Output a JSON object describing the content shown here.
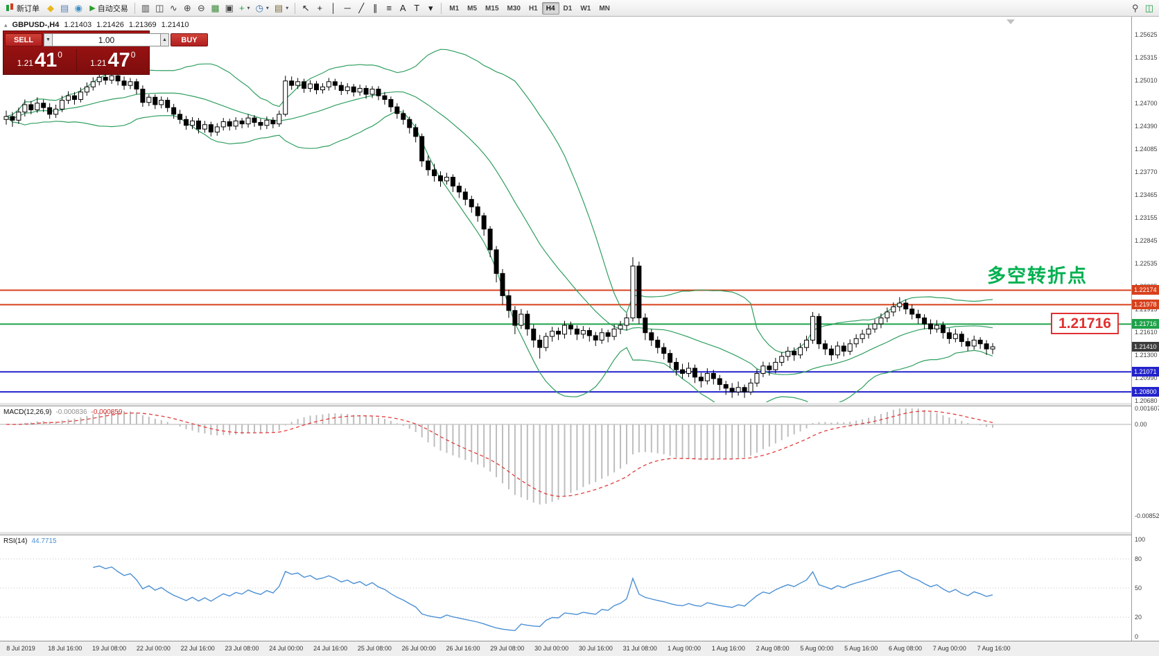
{
  "toolbar": {
    "new_order_label": "新订单",
    "auto_trading_label": "自动交易",
    "timeframes": [
      "M1",
      "M5",
      "M15",
      "M30",
      "H1",
      "H4",
      "D1",
      "W1",
      "MN"
    ],
    "active_timeframe": "H4",
    "icon_buttons_left": [
      {
        "name": "mql5-icon",
        "glyph": "◆",
        "color": "#e8b61d"
      },
      {
        "name": "metaeditor-icon",
        "glyph": "▤",
        "color": "#5b7fb4"
      },
      {
        "name": "metaquotes-icon",
        "glyph": "◉",
        "color": "#3f8fc4"
      }
    ],
    "chart_tool_icons": [
      {
        "name": "bar-chart-icon",
        "glyph": "▥",
        "color": "#444"
      },
      {
        "name": "candlestick-chart-icon",
        "glyph": "◫",
        "color": "#444"
      },
      {
        "name": "line-chart-icon",
        "glyph": "∿",
        "color": "#444"
      },
      {
        "name": "zoom-in-icon",
        "glyph": "⊕",
        "color": "#444"
      },
      {
        "name": "zoom-out-icon",
        "glyph": "⊖",
        "color": "#444"
      },
      {
        "name": "tile-windows-icon",
        "glyph": "▦",
        "color": "#3a8a3a"
      },
      {
        "name": "arrange-windows-icon",
        "glyph": "▣",
        "color": "#444"
      },
      {
        "name": "indicators-icon",
        "glyph": "+",
        "color": "#1e9e40",
        "dropdown": true
      },
      {
        "name": "periods-icon",
        "glyph": "◷",
        "color": "#3a6ea8",
        "dropdown": true
      },
      {
        "name": "templates-icon",
        "glyph": "▤",
        "color": "#7a6a3a",
        "dropdown": true
      }
    ],
    "draw_tool_icons": [
      {
        "name": "cursor-icon",
        "glyph": "↖",
        "color": "#222"
      },
      {
        "name": "crosshair-icon",
        "glyph": "+",
        "color": "#222"
      },
      {
        "name": "vertical-line-icon",
        "glyph": "│",
        "color": "#222"
      },
      {
        "name": "horizontal-line-icon",
        "glyph": "─",
        "color": "#222"
      },
      {
        "name": "trendline-icon",
        "glyph": "╱",
        "color": "#222"
      },
      {
        "name": "channel-icon",
        "glyph": "∥",
        "color": "#222"
      },
      {
        "name": "fibonacci-icon",
        "glyph": "≡",
        "color": "#222"
      },
      {
        "name": "text-icon",
        "glyph": "A",
        "color": "#222"
      },
      {
        "name": "label-icon",
        "glyph": "T",
        "color": "#222"
      },
      {
        "name": "shapes-dropdown-icon",
        "glyph": "▾",
        "color": "#222"
      }
    ],
    "right_icons": [
      {
        "name": "search-icon",
        "glyph": "⚲",
        "color": "#444"
      },
      {
        "name": "new-chart-icon",
        "glyph": "◫",
        "color": "#1e9e40"
      }
    ]
  },
  "symbol_bar": {
    "symbol": "GBPUSD-,H4",
    "open": "1.21403",
    "high": "1.21426",
    "low": "1.21369",
    "close": "1.21410"
  },
  "trade_panel": {
    "sell_label": "SELL",
    "buy_label": "BUY",
    "volume": "1.00",
    "sell_price_prefix": "1.21",
    "sell_price_big": "41",
    "sell_price_sup": "0",
    "buy_price_prefix": "1.21",
    "buy_price_big": "47",
    "buy_price_sup": "0"
  },
  "annotation": {
    "text": "多空转折点",
    "color": "#00b050"
  },
  "price_callout": {
    "text": "1.21716",
    "color": "#e03030"
  },
  "indicators": {
    "macd_label": "MACD(12,26,9)",
    "macd_value_main": "-0.000836",
    "macd_value_signal": "-0.000859",
    "rsi_label": "RSI(14)",
    "rsi_value": "44.7715"
  },
  "chart_data": {
    "type": "candlestick",
    "symbol": "GBPUSD",
    "period": "H4",
    "format": "ohlc",
    "price_axis_range": [
      1.2068,
      1.25625
    ],
    "price_axis_ticks": [
      "1.25625",
      "1.25315",
      "1.25010",
      "1.24700",
      "1.24390",
      "1.24085",
      "1.23770",
      "1.23465",
      "1.23155",
      "1.22845",
      "1.22535",
      "1.22225",
      "1.21915",
      "1.21610",
      "1.21300",
      "1.20990",
      "1.20680"
    ],
    "time_axis_ticks": [
      "8 Jul 2019",
      "18 Jul 16:00",
      "19 Jul 08:00",
      "22 Jul 00:00",
      "22 Jul 16:00",
      "23 Jul 08:00",
      "24 Jul 00:00",
      "24 Jul 16:00",
      "25 Jul 08:00",
      "26 Jul 00:00",
      "26 Jul 16:00",
      "29 Jul 08:00",
      "30 Jul 00:00",
      "30 Jul 16:00",
      "31 Jul 08:00",
      "1 Aug 00:00",
      "1 Aug 16:00",
      "2 Aug 08:00",
      "5 Aug 00:00",
      "5 Aug 16:00",
      "6 Aug 08:00",
      "7 Aug 00:00",
      "7 Aug 16:00"
    ],
    "levels": [
      {
        "price": 1.22174,
        "label": "1.22174",
        "color": "#d8411c"
      },
      {
        "price": 1.21978,
        "label": "1.21978",
        "color": "#d8411c"
      },
      {
        "price": 1.21716,
        "label": "1.21716",
        "color": "#1fa24a"
      },
      {
        "price": 1.21071,
        "label": "1.21071",
        "color": "#2323cc"
      },
      {
        "price": 1.208,
        "label": "1.20800",
        "color": "#2323cc"
      }
    ],
    "current_price": {
      "value": 1.2141,
      "label": "1.21410",
      "tag_color": "#3c3c3c"
    },
    "bollinger": {
      "period": 20,
      "deviation": 2,
      "color": "#2f9e5f"
    },
    "macd": {
      "fast": 12,
      "slow": 26,
      "signal_period": 9,
      "hist_color": "#bdbdbd",
      "signal_color": "#e23b3b",
      "axis_ticks": [
        "0.001607",
        "0.00",
        "-0.008522"
      ]
    },
    "rsi": {
      "period": 14,
      "color": "#4a8fd4",
      "axis_ticks": [
        100,
        80,
        50,
        20,
        0
      ],
      "level_lines": [
        80,
        50,
        20
      ]
    },
    "candle_colors": {
      "up": "#ffffff",
      "down": "#000000",
      "outline": "#000000"
    },
    "candles": [
      [
        1.2448,
        1.246,
        1.2441,
        1.2452
      ],
      [
        1.2452,
        1.2458,
        1.2438,
        1.2447
      ],
      [
        1.2447,
        1.2464,
        1.2442,
        1.2458
      ],
      [
        1.2458,
        1.2475,
        1.2452,
        1.2468
      ],
      [
        1.2468,
        1.2473,
        1.2455,
        1.2461
      ],
      [
        1.2461,
        1.2478,
        1.2457,
        1.247
      ],
      [
        1.247,
        1.2475,
        1.2458,
        1.2464
      ],
      [
        1.2464,
        1.247,
        1.2449,
        1.2455
      ],
      [
        1.2455,
        1.2468,
        1.245,
        1.2462
      ],
      [
        1.2462,
        1.248,
        1.2458,
        1.2474
      ],
      [
        1.2474,
        1.2486,
        1.2469,
        1.248
      ],
      [
        1.248,
        1.2485,
        1.2468,
        1.2475
      ],
      [
        1.2475,
        1.2491,
        1.2471,
        1.2485
      ],
      [
        1.2485,
        1.2498,
        1.248,
        1.2492
      ],
      [
        1.2492,
        1.2505,
        1.2487,
        1.2499
      ],
      [
        1.2499,
        1.2512,
        1.2494,
        1.2505
      ],
      [
        1.2505,
        1.251,
        1.2495,
        1.2501
      ],
      [
        1.2501,
        1.2513,
        1.2496,
        1.2507
      ],
      [
        1.2507,
        1.2511,
        1.2494,
        1.25
      ],
      [
        1.25,
        1.2506,
        1.2488,
        1.2494
      ],
      [
        1.2494,
        1.2504,
        1.2489,
        1.2499
      ],
      [
        1.2499,
        1.2503,
        1.2482,
        1.2489
      ],
      [
        1.2489,
        1.2494,
        1.2465,
        1.2471
      ],
      [
        1.2471,
        1.2482,
        1.2466,
        1.2478
      ],
      [
        1.2478,
        1.2482,
        1.2462,
        1.2468
      ],
      [
        1.2468,
        1.2479,
        1.2463,
        1.2474
      ],
      [
        1.2474,
        1.2478,
        1.2458,
        1.2464
      ],
      [
        1.2464,
        1.2469,
        1.2449,
        1.2455
      ],
      [
        1.2455,
        1.2461,
        1.2442,
        1.2448
      ],
      [
        1.2448,
        1.2453,
        1.2434,
        1.244
      ],
      [
        1.244,
        1.2451,
        1.2435,
        1.2446
      ],
      [
        1.2446,
        1.245,
        1.2429,
        1.2435
      ],
      [
        1.2435,
        1.2446,
        1.243,
        1.2441
      ],
      [
        1.2441,
        1.2445,
        1.2425,
        1.2431
      ],
      [
        1.2431,
        1.2443,
        1.2426,
        1.2438
      ],
      [
        1.2438,
        1.245,
        1.2433,
        1.2445
      ],
      [
        1.2445,
        1.2449,
        1.2433,
        1.2439
      ],
      [
        1.2439,
        1.2451,
        1.2434,
        1.2446
      ],
      [
        1.2446,
        1.245,
        1.2436,
        1.2442
      ],
      [
        1.2442,
        1.2455,
        1.2437,
        1.245
      ],
      [
        1.245,
        1.2454,
        1.2438,
        1.2444
      ],
      [
        1.2444,
        1.2449,
        1.2434,
        1.244
      ],
      [
        1.244,
        1.2452,
        1.2435,
        1.2447
      ],
      [
        1.2447,
        1.2451,
        1.2436,
        1.2442
      ],
      [
        1.2442,
        1.246,
        1.2438,
        1.2455
      ],
      [
        1.2455,
        1.2507,
        1.2452,
        1.25
      ],
      [
        1.25,
        1.2506,
        1.2488,
        1.2494
      ],
      [
        1.2494,
        1.2504,
        1.2489,
        1.2499
      ],
      [
        1.2499,
        1.2503,
        1.2484,
        1.249
      ],
      [
        1.249,
        1.2501,
        1.2485,
        1.2496
      ],
      [
        1.2496,
        1.25,
        1.2482,
        1.2488
      ],
      [
        1.2488,
        1.2497,
        1.2483,
        1.2492
      ],
      [
        1.2492,
        1.2504,
        1.2487,
        1.2499
      ],
      [
        1.2499,
        1.2503,
        1.2488,
        1.2494
      ],
      [
        1.2494,
        1.2499,
        1.2481,
        1.2487
      ],
      [
        1.2487,
        1.2497,
        1.2482,
        1.2492
      ],
      [
        1.2492,
        1.2496,
        1.2479,
        1.2485
      ],
      [
        1.2485,
        1.2495,
        1.248,
        1.249
      ],
      [
        1.249,
        1.2494,
        1.2476,
        1.2482
      ],
      [
        1.2482,
        1.2493,
        1.2477,
        1.2489
      ],
      [
        1.2489,
        1.2493,
        1.2474,
        1.248
      ],
      [
        1.248,
        1.2485,
        1.2468,
        1.2475
      ],
      [
        1.2475,
        1.2479,
        1.2458,
        1.2465
      ],
      [
        1.2465,
        1.247,
        1.2449,
        1.2456
      ],
      [
        1.2456,
        1.2461,
        1.2441,
        1.2448
      ],
      [
        1.2448,
        1.2452,
        1.2429,
        1.2437
      ],
      [
        1.2437,
        1.2442,
        1.2417,
        1.2425
      ],
      [
        1.2425,
        1.2429,
        1.2384,
        1.2392
      ],
      [
        1.2392,
        1.2399,
        1.2372,
        1.238
      ],
      [
        1.238,
        1.2388,
        1.2364,
        1.2372
      ],
      [
        1.2372,
        1.2378,
        1.2357,
        1.2365
      ],
      [
        1.2365,
        1.2376,
        1.236,
        1.237
      ],
      [
        1.237,
        1.2374,
        1.235,
        1.2358
      ],
      [
        1.2358,
        1.2363,
        1.2342,
        1.235
      ],
      [
        1.235,
        1.2355,
        1.2332,
        1.234
      ],
      [
        1.234,
        1.2345,
        1.2322,
        1.233
      ],
      [
        1.233,
        1.2335,
        1.231,
        1.2318
      ],
      [
        1.2318,
        1.2322,
        1.2291,
        1.23
      ],
      [
        1.23,
        1.2304,
        1.2262,
        1.2272
      ],
      [
        1.2272,
        1.2277,
        1.2228,
        1.224
      ],
      [
        1.224,
        1.2246,
        1.2198,
        1.221
      ],
      [
        1.221,
        1.2218,
        1.218,
        1.219
      ],
      [
        1.219,
        1.2196,
        1.2158,
        1.217
      ],
      [
        1.217,
        1.2192,
        1.2165,
        1.2185
      ],
      [
        1.2185,
        1.219,
        1.2156,
        1.2165
      ],
      [
        1.2165,
        1.2171,
        1.214,
        1.215
      ],
      [
        1.215,
        1.2157,
        1.2125,
        1.214
      ],
      [
        1.214,
        1.216,
        1.2135,
        1.2155
      ],
      [
        1.2155,
        1.2168,
        1.2148,
        1.2162
      ],
      [
        1.2162,
        1.2167,
        1.215,
        1.2158
      ],
      [
        1.2158,
        1.2176,
        1.2152,
        1.217
      ],
      [
        1.217,
        1.2175,
        1.2157,
        1.2165
      ],
      [
        1.2165,
        1.217,
        1.215,
        1.2158
      ],
      [
        1.2158,
        1.2169,
        1.2152,
        1.2163
      ],
      [
        1.2163,
        1.2167,
        1.2148,
        1.2156
      ],
      [
        1.2156,
        1.2161,
        1.2142,
        1.215
      ],
      [
        1.215,
        1.2166,
        1.2145,
        1.216
      ],
      [
        1.216,
        1.2164,
        1.2147,
        1.2155
      ],
      [
        1.2155,
        1.2171,
        1.215,
        1.2165
      ],
      [
        1.2165,
        1.2176,
        1.2158,
        1.217
      ],
      [
        1.217,
        1.2186,
        1.2163,
        1.218
      ],
      [
        1.218,
        1.2262,
        1.2175,
        1.225
      ],
      [
        1.225,
        1.2256,
        1.2172,
        1.218
      ],
      [
        1.218,
        1.2186,
        1.215,
        1.216
      ],
      [
        1.216,
        1.2165,
        1.2142,
        1.215
      ],
      [
        1.215,
        1.2155,
        1.2132,
        1.214
      ],
      [
        1.214,
        1.2146,
        1.2124,
        1.2132
      ],
      [
        1.2132,
        1.2137,
        1.2112,
        1.212
      ],
      [
        1.212,
        1.2126,
        1.2102,
        1.211
      ],
      [
        1.211,
        1.2118,
        1.2098,
        1.2105
      ],
      [
        1.2105,
        1.212,
        1.21,
        1.2112
      ],
      [
        1.2112,
        1.2117,
        1.2092,
        1.21
      ],
      [
        1.21,
        1.2106,
        1.2086,
        1.2095
      ],
      [
        1.2095,
        1.2112,
        1.209,
        1.2105
      ],
      [
        1.2105,
        1.211,
        1.209,
        1.2098
      ],
      [
        1.2098,
        1.2103,
        1.2082,
        1.209
      ],
      [
        1.209,
        1.2095,
        1.2076,
        1.2085
      ],
      [
        1.2085,
        1.2092,
        1.2072,
        1.208
      ],
      [
        1.208,
        1.2094,
        1.2075,
        1.2086
      ],
      [
        1.2086,
        1.209,
        1.2072,
        1.208
      ],
      [
        1.208,
        1.2098,
        1.2076,
        1.2092
      ],
      [
        1.2092,
        1.2111,
        1.2087,
        1.2105
      ],
      [
        1.2105,
        1.2121,
        1.21,
        1.2115
      ],
      [
        1.2115,
        1.212,
        1.2102,
        1.211
      ],
      [
        1.211,
        1.2126,
        1.2105,
        1.212
      ],
      [
        1.212,
        1.2134,
        1.2115,
        1.2128
      ],
      [
        1.2128,
        1.2141,
        1.2122,
        1.2135
      ],
      [
        1.2135,
        1.214,
        1.2122,
        1.213
      ],
      [
        1.213,
        1.2146,
        1.2125,
        1.214
      ],
      [
        1.214,
        1.2156,
        1.2135,
        1.215
      ],
      [
        1.215,
        1.2188,
        1.2145,
        1.2182
      ],
      [
        1.2182,
        1.2186,
        1.2138,
        1.2145
      ],
      [
        1.2145,
        1.215,
        1.213,
        1.2138
      ],
      [
        1.2138,
        1.2143,
        1.2122,
        1.213
      ],
      [
        1.213,
        1.2148,
        1.2125,
        1.2142
      ],
      [
        1.2142,
        1.2147,
        1.2128,
        1.2135
      ],
      [
        1.2135,
        1.2151,
        1.213,
        1.2145
      ],
      [
        1.2145,
        1.2158,
        1.214,
        1.2152
      ],
      [
        1.2152,
        1.2164,
        1.2146,
        1.2158
      ],
      [
        1.2158,
        1.2171,
        1.2152,
        1.2165
      ],
      [
        1.2165,
        1.2178,
        1.216,
        1.2172
      ],
      [
        1.2172,
        1.2186,
        1.2166,
        1.218
      ],
      [
        1.218,
        1.2194,
        1.2174,
        1.2188
      ],
      [
        1.2188,
        1.2201,
        1.2182,
        1.2195
      ],
      [
        1.2195,
        1.2208,
        1.2189,
        1.22
      ],
      [
        1.22,
        1.2205,
        1.2185,
        1.2192
      ],
      [
        1.2192,
        1.2198,
        1.2178,
        1.2185
      ],
      [
        1.2185,
        1.2191,
        1.2172,
        1.218
      ],
      [
        1.218,
        1.2185,
        1.2165,
        1.2172
      ],
      [
        1.2172,
        1.2178,
        1.2158,
        1.2165
      ],
      [
        1.2165,
        1.2177,
        1.216,
        1.217
      ],
      [
        1.217,
        1.2175,
        1.2152,
        1.216
      ],
      [
        1.216,
        1.2166,
        1.2145,
        1.2152
      ],
      [
        1.2152,
        1.2165,
        1.2147,
        1.2158
      ],
      [
        1.2158,
        1.2162,
        1.2141,
        1.2148
      ],
      [
        1.2148,
        1.2153,
        1.2135,
        1.2142
      ],
      [
        1.2142,
        1.2156,
        1.2137,
        1.215
      ],
      [
        1.215,
        1.2154,
        1.2138,
        1.2145
      ],
      [
        1.2145,
        1.215,
        1.213,
        1.2138
      ],
      [
        1.2138,
        1.2146,
        1.2131,
        1.2141
      ]
    ]
  }
}
